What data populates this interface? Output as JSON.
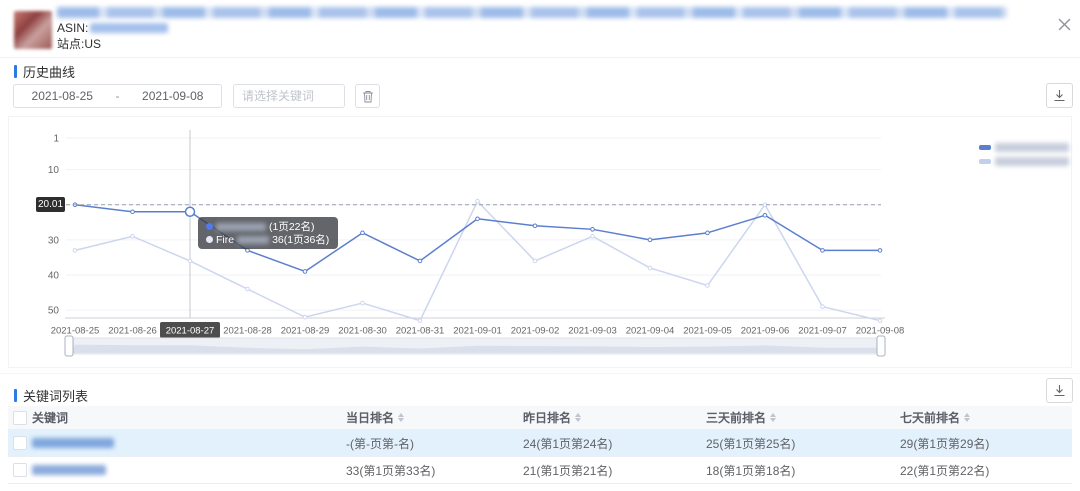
{
  "dialog": {
    "asin_label": "ASIN:",
    "site_label": "站点:US"
  },
  "history_section": {
    "title": "历史曲线",
    "date_start": "2021-08-25",
    "date_separator": "-",
    "date_end": "2021-09-08",
    "keyword_placeholder": "请选择关键词"
  },
  "chart_data": {
    "type": "line",
    "x": [
      "2021-08-25",
      "2021-08-26",
      "2021-08-27",
      "2021-08-28",
      "2021-08-29",
      "2021-08-30",
      "2021-08-31",
      "2021-09-01",
      "2021-09-02",
      "2021-09-03",
      "2021-09-04",
      "2021-09-05",
      "2021-09-06",
      "2021-09-07",
      "2021-09-08"
    ],
    "series": [
      {
        "name": "keyword-1 (text blurred)",
        "color": "#5b7fce",
        "values": [
          20,
          22,
          22,
          33,
          39,
          28,
          36,
          24,
          26,
          27,
          30,
          28,
          23,
          33,
          33
        ]
      },
      {
        "name": "keyword-2 (text blurred)",
        "color": "#ccd6ef",
        "values": [
          33,
          29,
          36,
          44,
          52,
          48,
          53,
          19,
          36,
          29,
          38,
          43,
          20,
          49,
          53
        ]
      }
    ],
    "y_axis_inverted": true,
    "y_ticks": [
      1,
      10,
      20,
      30,
      40,
      50
    ],
    "ylim": [
      1,
      55
    ],
    "grid": true,
    "legend_position": "right",
    "legend_text_blurred": true,
    "highlighted_x": "2021-08-27",
    "axis_pointer_value": "20.01",
    "tooltip": {
      "row1_suffix": "(1页22名)",
      "row2_prefix": "Fire",
      "row2_suffix": "36(1页36名)"
    }
  },
  "keyword_section": {
    "title": "关键词列表"
  },
  "table": {
    "columns": [
      "关键词",
      "当日排名",
      "昨日排名",
      "三天前排名",
      "七天前排名"
    ],
    "rows": [
      {
        "today": "-(第-页第-名)",
        "yesterday": "24(第1页第24名)",
        "three_days_ago": "25(第1页第25名)",
        "seven_days_ago": "29(第1页第29名)"
      },
      {
        "today": "33(第1页第33名)",
        "yesterday": "21(第1页第21名)",
        "three_days_ago": "18(第1页第18名)",
        "seven_days_ago": "22(第1页第22名)"
      }
    ]
  }
}
